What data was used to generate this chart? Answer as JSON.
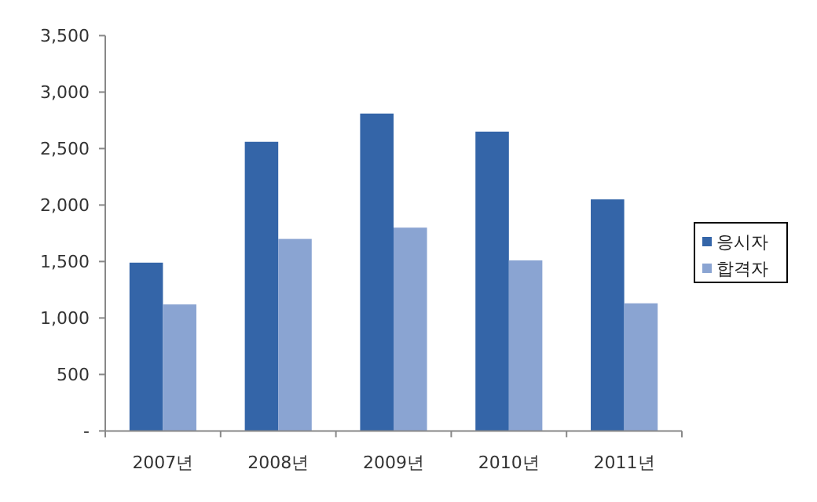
{
  "chart_data": {
    "type": "bar",
    "categories": [
      "2007년",
      "2008년",
      "2009년",
      "2010년",
      "2011년"
    ],
    "series": [
      {
        "name": "응시자",
        "color": "#3465a8",
        "values": [
          1490,
          2560,
          2810,
          2650,
          2050
        ]
      },
      {
        "name": "합격자",
        "color": "#8aa4d2",
        "values": [
          1120,
          1700,
          1800,
          1510,
          1130
        ]
      }
    ],
    "ylim": [
      0,
      3500
    ],
    "yticks": [
      {
        "value": 0,
        "label": "-"
      },
      500,
      {
        "value": 1000,
        "label": "1,000"
      },
      {
        "value": 1500,
        "label": "1,500"
      },
      {
        "value": 2000,
        "label": "2,000"
      },
      {
        "value": 2500,
        "label": "2,500"
      },
      {
        "value": 3000,
        "label": "3,000"
      },
      {
        "value": 3500,
        "label": "3,500"
      }
    ],
    "grid": false,
    "legend": "right"
  }
}
